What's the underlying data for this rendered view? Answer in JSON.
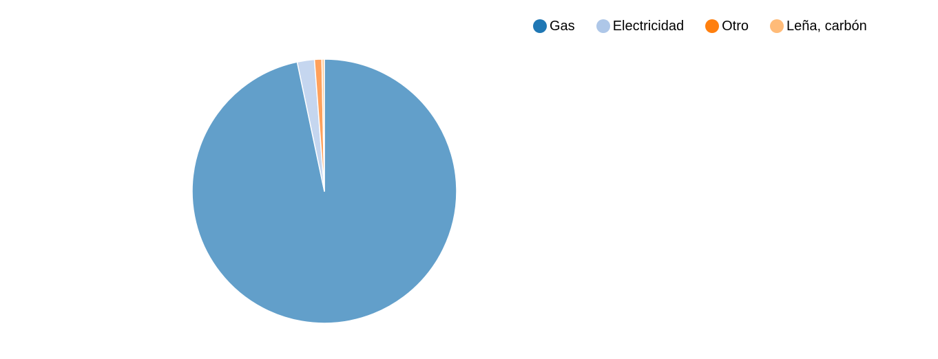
{
  "chart_data": {
    "type": "pie",
    "title": "",
    "legend_position": "top-right",
    "slices": [
      {
        "label": "Gas",
        "value": 96.7,
        "color": "#629fca",
        "legend_color": "#1f77b4"
      },
      {
        "label": "Electricidad",
        "value": 2.1,
        "color": "#c5d6ef",
        "legend_color": "#aec7e8"
      },
      {
        "label": "Otro",
        "value": 0.9,
        "color": "#ffa15c",
        "legend_color": "#ff7f0e"
      },
      {
        "label": "Leña, carbón",
        "value": 0.3,
        "color": "#ffcc99",
        "legend_color": "#ffbb78"
      }
    ]
  }
}
